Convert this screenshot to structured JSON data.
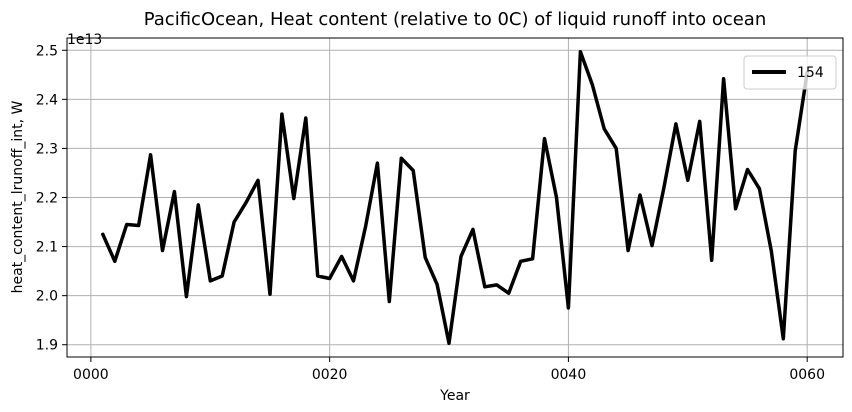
{
  "chart_data": {
    "type": "line",
    "title": "PacificOcean, Heat content (relative to 0C) of liquid runoff into ocean",
    "xlabel": "Year",
    "ylabel": "heat_content_lrunoff_int, W",
    "y_offset_label": "1e13",
    "xlim": [
      -2,
      63
    ],
    "ylim": [
      1.875,
      2.525
    ],
    "x_ticks": [
      0,
      20,
      40,
      60
    ],
    "x_tick_labels": [
      "0000",
      "0020",
      "0040",
      "0060"
    ],
    "y_ticks": [
      1.9,
      2.0,
      2.1,
      2.2,
      2.3,
      2.4,
      2.5
    ],
    "y_tick_labels": [
      "1.9",
      "2.0",
      "2.1",
      "2.2",
      "2.3",
      "2.4",
      "2.5"
    ],
    "grid": true,
    "legend_position": "top-right",
    "series": [
      {
        "name": "154",
        "color": "#000000",
        "x": [
          1,
          2,
          3,
          4,
          5,
          6,
          7,
          8,
          9,
          10,
          11,
          12,
          13,
          14,
          15,
          16,
          17,
          18,
          19,
          20,
          21,
          22,
          23,
          24,
          25,
          26,
          27,
          28,
          29,
          30,
          31,
          32,
          33,
          34,
          35,
          36,
          37,
          38,
          39,
          40,
          41,
          42,
          43,
          44,
          45,
          46,
          47,
          48,
          49,
          50,
          51,
          52,
          53,
          54,
          55,
          56,
          57,
          58,
          59,
          60
        ],
        "y": [
          2.125,
          2.07,
          2.145,
          2.143,
          2.287,
          2.092,
          2.212,
          1.998,
          2.185,
          2.03,
          2.04,
          2.15,
          2.19,
          2.235,
          2.003,
          2.37,
          2.198,
          2.362,
          2.04,
          2.035,
          2.08,
          2.03,
          2.14,
          2.27,
          1.988,
          2.28,
          2.255,
          2.078,
          2.023,
          1.903,
          2.08,
          2.135,
          2.018,
          2.022,
          2.005,
          2.07,
          2.075,
          2.32,
          2.2,
          1.975,
          2.497,
          2.43,
          2.34,
          2.3,
          2.092,
          2.205,
          2.102,
          2.22,
          2.35,
          2.235,
          2.355,
          2.072,
          2.442,
          2.177,
          2.257,
          2.218,
          2.09,
          1.912,
          2.295,
          2.455
        ]
      }
    ]
  }
}
